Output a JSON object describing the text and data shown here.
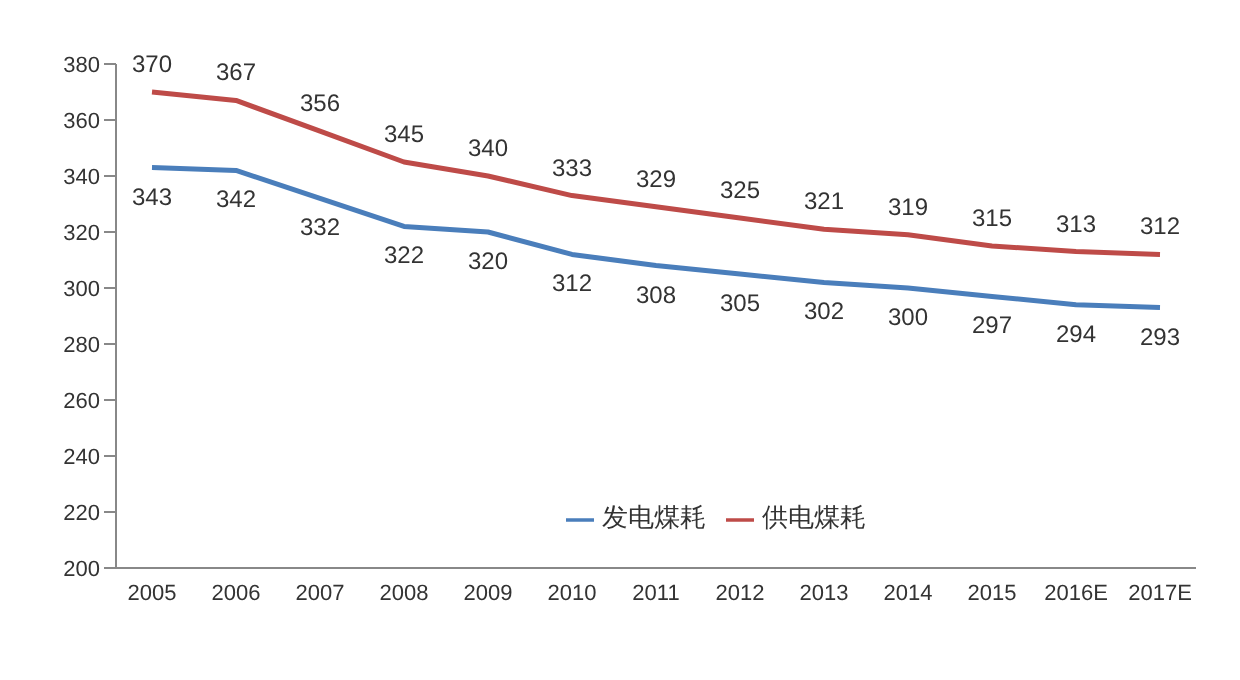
{
  "chart_data": {
    "type": "line",
    "categories": [
      "2005",
      "2006",
      "2007",
      "2008",
      "2009",
      "2010",
      "2011",
      "2012",
      "2013",
      "2014",
      "2015",
      "2016E",
      "2017E"
    ],
    "series": [
      {
        "name": "发电煤耗",
        "color": "#4a7ebb",
        "values": [
          343,
          342,
          332,
          322,
          320,
          312,
          308,
          305,
          302,
          300,
          297,
          294,
          293
        ]
      },
      {
        "name": "供电煤耗",
        "color": "#be4b48",
        "values": [
          370,
          367,
          356,
          345,
          340,
          333,
          329,
          325,
          321,
          319,
          315,
          313,
          312
        ]
      }
    ],
    "ylim": [
      200,
      380
    ],
    "yticks": [
      200,
      220,
      240,
      260,
      280,
      300,
      320,
      340,
      360,
      380
    ],
    "legend": "bottom",
    "data_labels": true,
    "marker": "none"
  }
}
